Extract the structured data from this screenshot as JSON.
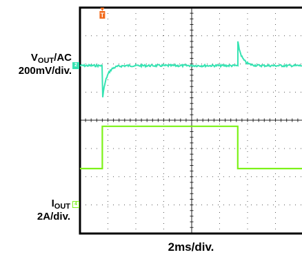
{
  "chart_data": {
    "type": "line",
    "xlabel": "2ms/div.",
    "x_per_div_ms": 2,
    "trigger_marker": "T",
    "series": [
      {
        "name": "V_OUT/AC",
        "unit_per_div": "200mV/div.",
        "color": "#36e3b2",
        "channel_marker": "2",
        "baseline_div": 0,
        "undershoot_at_ms": 1.6,
        "undershoot_peak_mV": -240,
        "overshoot_at_ms": 11.3,
        "overshoot_peak_mV": 170,
        "recovery_tau_ms": 0.3
      },
      {
        "name": "I_OUT",
        "unit_per_div": "2A/div.",
        "color": "#7cf218",
        "channel_marker": "4",
        "step_start_ms": 1.6,
        "step_end_ms": 11.3,
        "low_A": 0,
        "high_A": 5
      }
    ]
  },
  "labels": {
    "vout_main": "V",
    "vout_sub": "OUT",
    "vout_suffix": "/AC",
    "vout_scale": "200mV/div.",
    "iout_main": "I",
    "iout_sub": "OUT",
    "iout_scale": "2A/div."
  }
}
